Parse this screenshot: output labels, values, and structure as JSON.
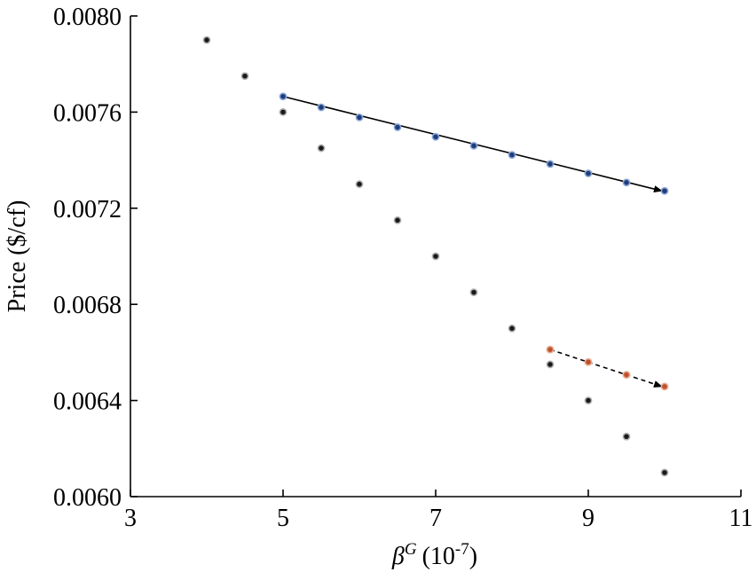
{
  "chart_data": {
    "type": "scatter",
    "xlabel_symbol": "β",
    "xlabel_superscript": "G",
    "xlabel_unit": "(10",
    "xlabel_unit_exp": "-7",
    "xlabel_unit_close": ")",
    "ylabel": "Price ($/cf)",
    "xlim": [
      3,
      11
    ],
    "ylim": [
      0.006,
      0.008
    ],
    "xticks": [
      "3",
      "5",
      "7",
      "9",
      "11"
    ],
    "yticks": [
      "0.0060",
      "0.0064",
      "0.0068",
      "0.0072",
      "0.0076",
      "0.0080"
    ],
    "grid": false,
    "series": [
      {
        "color": "#1a1a1a",
        "edge": "#b0b0b0",
        "x": [
          4,
          4.5,
          5,
          5.5,
          6,
          6.5,
          7,
          7.5,
          8,
          8.5,
          9,
          9.5,
          10
        ],
        "y": [
          0.0079,
          0.00775,
          0.0076,
          0.00745,
          0.0073,
          0.00715,
          0.007,
          0.00685,
          0.0067,
          0.00655,
          0.0064,
          0.00625,
          0.0061
        ]
      },
      {
        "color": "#1f3d7a",
        "edge": "#8aa6d6",
        "line": "solid",
        "arrow": true,
        "x": [
          5,
          5.5,
          6,
          6.5,
          7,
          7.5,
          8,
          8.5,
          9,
          9.5,
          10
        ],
        "y": [
          0.007665,
          0.00762,
          0.007578,
          0.007537,
          0.007497,
          0.00746,
          0.007422,
          0.007384,
          0.007345,
          0.007307,
          0.007272
        ]
      },
      {
        "color": "#c0502a",
        "edge": "#e8a98f",
        "line": "dashed",
        "arrow": true,
        "x": [
          8.5,
          9,
          9.5,
          10
        ],
        "y": [
          0.006612,
          0.00656,
          0.006507,
          0.006458
        ]
      }
    ]
  }
}
